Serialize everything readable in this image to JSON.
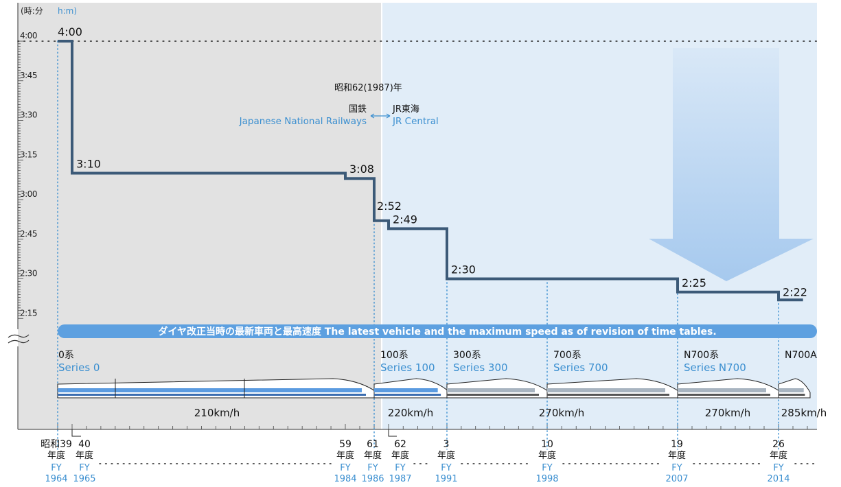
{
  "chart_data": {
    "type": "line",
    "title": "",
    "y_unit_ja": "(時:分",
    "y_unit_en": "h:m)",
    "y_ticks": [
      "4:00",
      "3:45",
      "3:30",
      "3:15",
      "3:00",
      "2:45",
      "2:30",
      "2:15"
    ],
    "y_tick_minutes": [
      240,
      225,
      210,
      195,
      180,
      165,
      150,
      135
    ],
    "ylim_minutes": [
      135,
      240
    ],
    "era_label": "昭和62(1987)年",
    "era_left_ja": "国鉄",
    "era_left_en": "Japanese National Railways",
    "era_right_ja": "JR東海",
    "era_right_en": "JR Central",
    "series": [
      {
        "name": "Tokyo–Shin-Osaka fastest travel time",
        "points": [
          {
            "fy": 1964,
            "minutes": 240,
            "label": "4:00"
          },
          {
            "fy": 1965,
            "minutes": 190,
            "label": "3:10"
          },
          {
            "fy": 1984,
            "minutes": 188,
            "label": "3:08"
          },
          {
            "fy": 1986,
            "minutes": 172,
            "label": "2:52"
          },
          {
            "fy": 1987,
            "minutes": 169,
            "label": "2:49"
          },
          {
            "fy": 1991,
            "minutes": 150,
            "label": "2:30"
          },
          {
            "fy": 2007,
            "minutes": 145,
            "label": "2:25"
          },
          {
            "fy": 2014,
            "minutes": 142,
            "label": "2:22"
          }
        ],
        "end_fy": 2015.7
      }
    ],
    "banner": "ダイヤ改正当時の最新車両と最高速度  The latest vehicle and the maximum speed as of revision of time tables.",
    "vehicles": [
      {
        "ja": "0系",
        "en": "Series 0",
        "from_fy": 1964,
        "to_fy": 1986
      },
      {
        "ja": "100系",
        "en": "Series 100",
        "from_fy": 1986,
        "to_fy": 1991
      },
      {
        "ja": "300系",
        "en": "Series 300",
        "from_fy": 1991,
        "to_fy": 1998
      },
      {
        "ja": "700系",
        "en": "Series 700",
        "from_fy": 1998,
        "to_fy": 2007
      },
      {
        "ja": "N700系",
        "en": "Series N700",
        "from_fy": 2007,
        "to_fy": 2014
      },
      {
        "ja": "N700A",
        "en": "",
        "from_fy": 2014,
        "to_fy": 2016
      }
    ],
    "speeds": [
      {
        "label": "210km/h",
        "from_fy": 1964,
        "to_fy": 1986
      },
      {
        "label": "220km/h",
        "from_fy": 1986,
        "to_fy": 1991
      },
      {
        "label": "270km/h",
        "from_fy": 1991,
        "to_fy": 2007
      },
      {
        "label": "270km/h",
        "from_fy": 2007,
        "to_fy": 2014
      },
      {
        "label": "285km/h",
        "from_fy": 2014,
        "to_fy": 2016
      }
    ],
    "x_ticks": [
      {
        "fy": 1964,
        "era": "昭和39",
        "nendo": "年度",
        "en": "FY",
        "year": "1964"
      },
      {
        "fy": 1965,
        "era": "40",
        "nendo": "年度",
        "en": "FY",
        "year": "1965"
      },
      {
        "fy": 1984,
        "era": "59",
        "nendo": "年度",
        "en": "FY",
        "year": "1984"
      },
      {
        "fy": 1986,
        "era": "61",
        "nendo": "年度",
        "en": "FY",
        "year": "1986"
      },
      {
        "fy": 1987,
        "era": "62",
        "nendo": "年度",
        "en": "FY",
        "year": "1987"
      },
      {
        "fy": 1991,
        "era": "3",
        "nendo": "年度",
        "en": "FY",
        "year": "1991"
      },
      {
        "fy": 1998,
        "era": "10",
        "nendo": "年度",
        "en": "FY",
        "year": "1998"
      },
      {
        "fy": 2007,
        "era": "19",
        "nendo": "年度",
        "en": "FY",
        "year": "2007"
      },
      {
        "fy": 2014,
        "era": "26",
        "nendo": "年度",
        "en": "FY",
        "year": "2014"
      }
    ],
    "xlim_fy": [
      1964,
      2016
    ],
    "colors": {
      "line": "#3c5a78",
      "accent_blue": "#3b8fd0",
      "jnr_bg": "#e2e2e2",
      "jr_bg": "#e1edf8",
      "banner": "#5da0e0",
      "arrow": "#a9ccf0",
      "train_blue": "#5b9be0"
    }
  }
}
